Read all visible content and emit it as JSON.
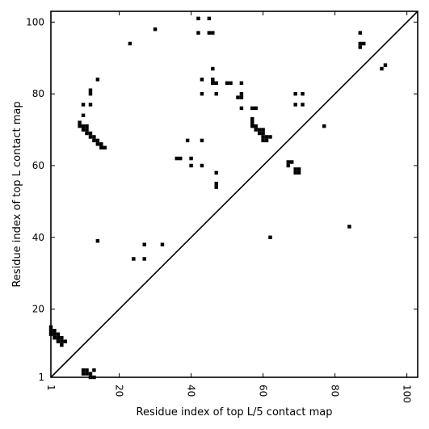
{
  "chart_data": {
    "type": "scatter",
    "title": "",
    "xlabel": "Residue index of top L/5 contact map",
    "ylabel": "Residue index of top L contact map",
    "xlim": [
      1,
      103
    ],
    "ylim": [
      1,
      103
    ],
    "x_ticks": [
      {
        "value": 1,
        "label": "1"
      },
      {
        "value": 20,
        "label": "20"
      },
      {
        "value": 40,
        "label": "40"
      },
      {
        "value": 60,
        "label": "60"
      },
      {
        "value": 80,
        "label": "80"
      },
      {
        "value": 100,
        "label": "100"
      }
    ],
    "y_ticks": [
      {
        "value": 1,
        "label": "1"
      },
      {
        "value": 20,
        "label": "20"
      },
      {
        "value": 40,
        "label": "40"
      },
      {
        "value": 60,
        "label": "60"
      },
      {
        "value": 80,
        "label": "80"
      },
      {
        "value": 100,
        "label": "100"
      }
    ],
    "x_rotated_labels": true,
    "grid": false,
    "marker": "square",
    "marker_color": "#000000",
    "diagonal_line": true,
    "series": [
      {
        "values": [
          [
            1,
            13
          ],
          [
            1,
            14
          ],
          [
            1,
            15
          ],
          [
            2,
            12
          ],
          [
            2,
            13
          ],
          [
            2,
            14
          ],
          [
            3,
            11
          ],
          [
            3,
            12
          ],
          [
            3,
            13
          ],
          [
            4,
            10
          ],
          [
            4,
            11
          ],
          [
            4,
            12
          ],
          [
            5,
            11
          ],
          [
            10,
            2
          ],
          [
            10,
            3
          ],
          [
            11,
            2
          ],
          [
            11,
            3
          ],
          [
            12,
            1
          ],
          [
            12,
            2
          ],
          [
            13,
            1
          ],
          [
            13,
            3
          ],
          [
            9,
            71
          ],
          [
            9,
            72
          ],
          [
            10,
            70
          ],
          [
            10,
            71
          ],
          [
            11,
            69
          ],
          [
            11,
            70
          ],
          [
            11,
            71
          ],
          [
            12,
            68
          ],
          [
            12,
            69
          ],
          [
            13,
            68
          ],
          [
            13,
            67
          ],
          [
            14,
            66
          ],
          [
            14,
            67
          ],
          [
            15,
            65
          ],
          [
            15,
            66
          ],
          [
            16,
            65
          ],
          [
            10,
            74
          ],
          [
            10,
            77
          ],
          [
            12,
            77
          ],
          [
            12,
            80
          ],
          [
            12,
            81
          ],
          [
            14,
            84
          ],
          [
            14,
            39
          ],
          [
            23,
            94
          ],
          [
            30,
            98
          ],
          [
            24,
            34
          ],
          [
            27,
            34
          ],
          [
            27,
            38
          ],
          [
            32,
            38
          ],
          [
            36,
            62
          ],
          [
            37,
            62
          ],
          [
            39,
            67
          ],
          [
            40,
            60
          ],
          [
            40,
            62
          ],
          [
            43,
            60
          ],
          [
            43,
            67
          ],
          [
            42,
            97
          ],
          [
            42,
            101
          ],
          [
            43,
            84
          ],
          [
            43,
            80
          ],
          [
            45,
            97
          ],
          [
            45,
            101
          ],
          [
            46,
            97
          ],
          [
            46,
            84
          ],
          [
            46,
            83
          ],
          [
            46,
            87
          ],
          [
            47,
            83
          ],
          [
            47,
            80
          ],
          [
            47,
            54
          ],
          [
            47,
            55
          ],
          [
            47,
            58
          ],
          [
            50,
            83
          ],
          [
            51,
            83
          ],
          [
            53,
            79
          ],
          [
            54,
            79
          ],
          [
            54,
            80
          ],
          [
            54,
            83
          ],
          [
            54,
            76
          ],
          [
            57,
            76
          ],
          [
            58,
            76
          ],
          [
            57,
            73
          ],
          [
            57,
            72
          ],
          [
            57,
            71
          ],
          [
            58,
            71
          ],
          [
            58,
            70
          ],
          [
            59,
            69
          ],
          [
            59,
            70
          ],
          [
            60,
            69
          ],
          [
            60,
            68
          ],
          [
            60,
            70
          ],
          [
            60,
            67
          ],
          [
            61,
            67
          ],
          [
            61,
            68
          ],
          [
            62,
            68
          ],
          [
            62,
            40
          ],
          [
            67,
            60
          ],
          [
            67,
            61
          ],
          [
            68,
            61
          ],
          [
            69,
            58
          ],
          [
            69,
            59
          ],
          [
            70,
            58
          ],
          [
            70,
            59
          ],
          [
            69,
            77
          ],
          [
            69,
            80
          ],
          [
            71,
            80
          ],
          [
            71,
            77
          ],
          [
            77,
            71
          ],
          [
            84,
            43
          ],
          [
            87,
            93
          ],
          [
            87,
            94
          ],
          [
            87,
            97
          ],
          [
            88,
            94
          ],
          [
            93,
            87
          ],
          [
            94,
            88
          ]
        ]
      }
    ]
  }
}
